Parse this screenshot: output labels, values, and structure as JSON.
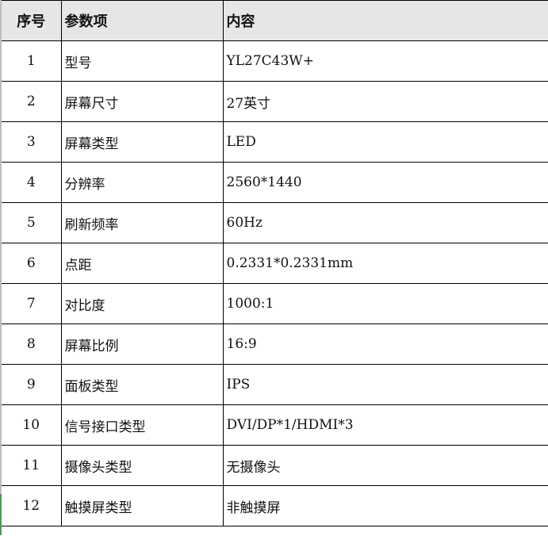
{
  "headers": [
    "序号",
    "参数项",
    "内容"
  ],
  "rows": [
    {
      "no": "1",
      "param": "型号",
      "value": "YL27C43W+"
    },
    {
      "no": "2",
      "param": "屏幕尺寸",
      "value": "27英寸"
    },
    {
      "no": "3",
      "param": "屏幕类型",
      "value": "LED"
    },
    {
      "no": "4",
      "param": "分辨率",
      "value": "2560*1440"
    },
    {
      "no": "5",
      "param": "刷新频率",
      "value": "60Hz"
    },
    {
      "no": "6",
      "param": "点距",
      "value": "0.2331*0.2331mm"
    },
    {
      "no": "7",
      "param": "对比度",
      "value": "1000:1"
    },
    {
      "no": "8",
      "param": "屏幕比例",
      "value": "16:9"
    },
    {
      "no": "9",
      "param": "面板类型",
      "value": "IPS"
    },
    {
      "no": "10",
      "param": "信号接口类型",
      "value": "DVI/DP*1/HDMI*3"
    },
    {
      "no": "11",
      "param": "摄像头类型",
      "value": "无摄像头"
    },
    {
      "no": "12",
      "param": "触摸屏类型",
      "value": "非触摸屏"
    }
  ],
  "colors": {
    "header_bg": "#e6e6e6",
    "selection": "#3fa34d"
  }
}
